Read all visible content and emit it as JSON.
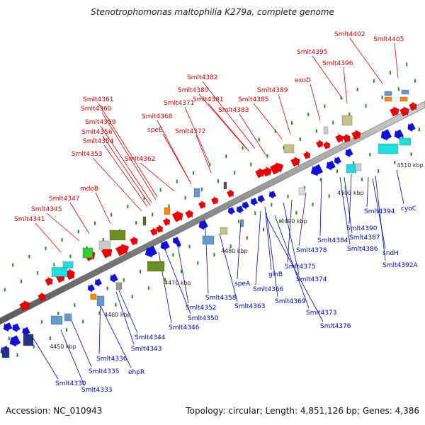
{
  "title": "Stenotrophomonas maltophilia K279a, complete genome",
  "footer": {
    "accession": "Accession: NC_010943",
    "summary": "Topology: circular; Length: 4,851,126 bp; Genes: 4,386"
  },
  "kbp_labels": [
    "4450 kbp",
    "4460 kbp",
    "4470 kbp",
    "4480 kbp",
    "4490 kbp",
    "4500 kbp",
    "4510 kbp"
  ],
  "top_labels": [
    "Smlt4402",
    "Smlt4405",
    "Smlt4395",
    "Smlt4396",
    "exoD",
    "Smlt4389",
    "Smlt4382",
    "Smlt4380",
    "Smlt4381",
    "Smlt4383",
    "Smlt4385",
    "Smlt4371",
    "Smlt4361",
    "Smlt4360",
    "Smlt4368",
    "Smlt4372",
    "Smlt4359",
    "Smlt4356",
    "speE",
    "Smlt4354",
    "Smlt4362",
    "Smlt4353",
    "mdoB",
    "Smlt4347",
    "Smlt4345",
    "Smlt4341"
  ],
  "bottom_labels": [
    "cyoC",
    "Smlt4394",
    "Smlt4390",
    "Smlt4387",
    "sndH",
    "Smlt4392A",
    "Smlt4384",
    "Smlt4386",
    "Smlt4378",
    "Smlt4375",
    "Smlt4374",
    "glnB",
    "Smlt4366",
    "Smlt4369",
    "Smlt4373",
    "Smlt4376",
    "speA",
    "Smlt4363",
    "Smlt4358",
    "Smlt4352",
    "Smlt4350",
    "Smlt4346",
    "Smlt4344",
    "Smlt4343",
    "Smlt4336",
    "ehpR",
    "Smlt4335",
    "Smlt4330",
    "Smlt4333"
  ],
  "colors": {
    "backbone": "#8a8a8a",
    "gene_forward": "#ee0000",
    "gene_reverse": "#1010dd",
    "label_forward": "#dd0000",
    "label_reverse": "#0000bb",
    "tick": "#228b22",
    "rna_cyan": "#22dddd",
    "olive": "#6b8e23",
    "khaki": "#c8c08a",
    "gray": "#999999",
    "green": "#33cc33",
    "steel": "#6699cc",
    "orange": "#ff8800",
    "navy": "#223388"
  }
}
